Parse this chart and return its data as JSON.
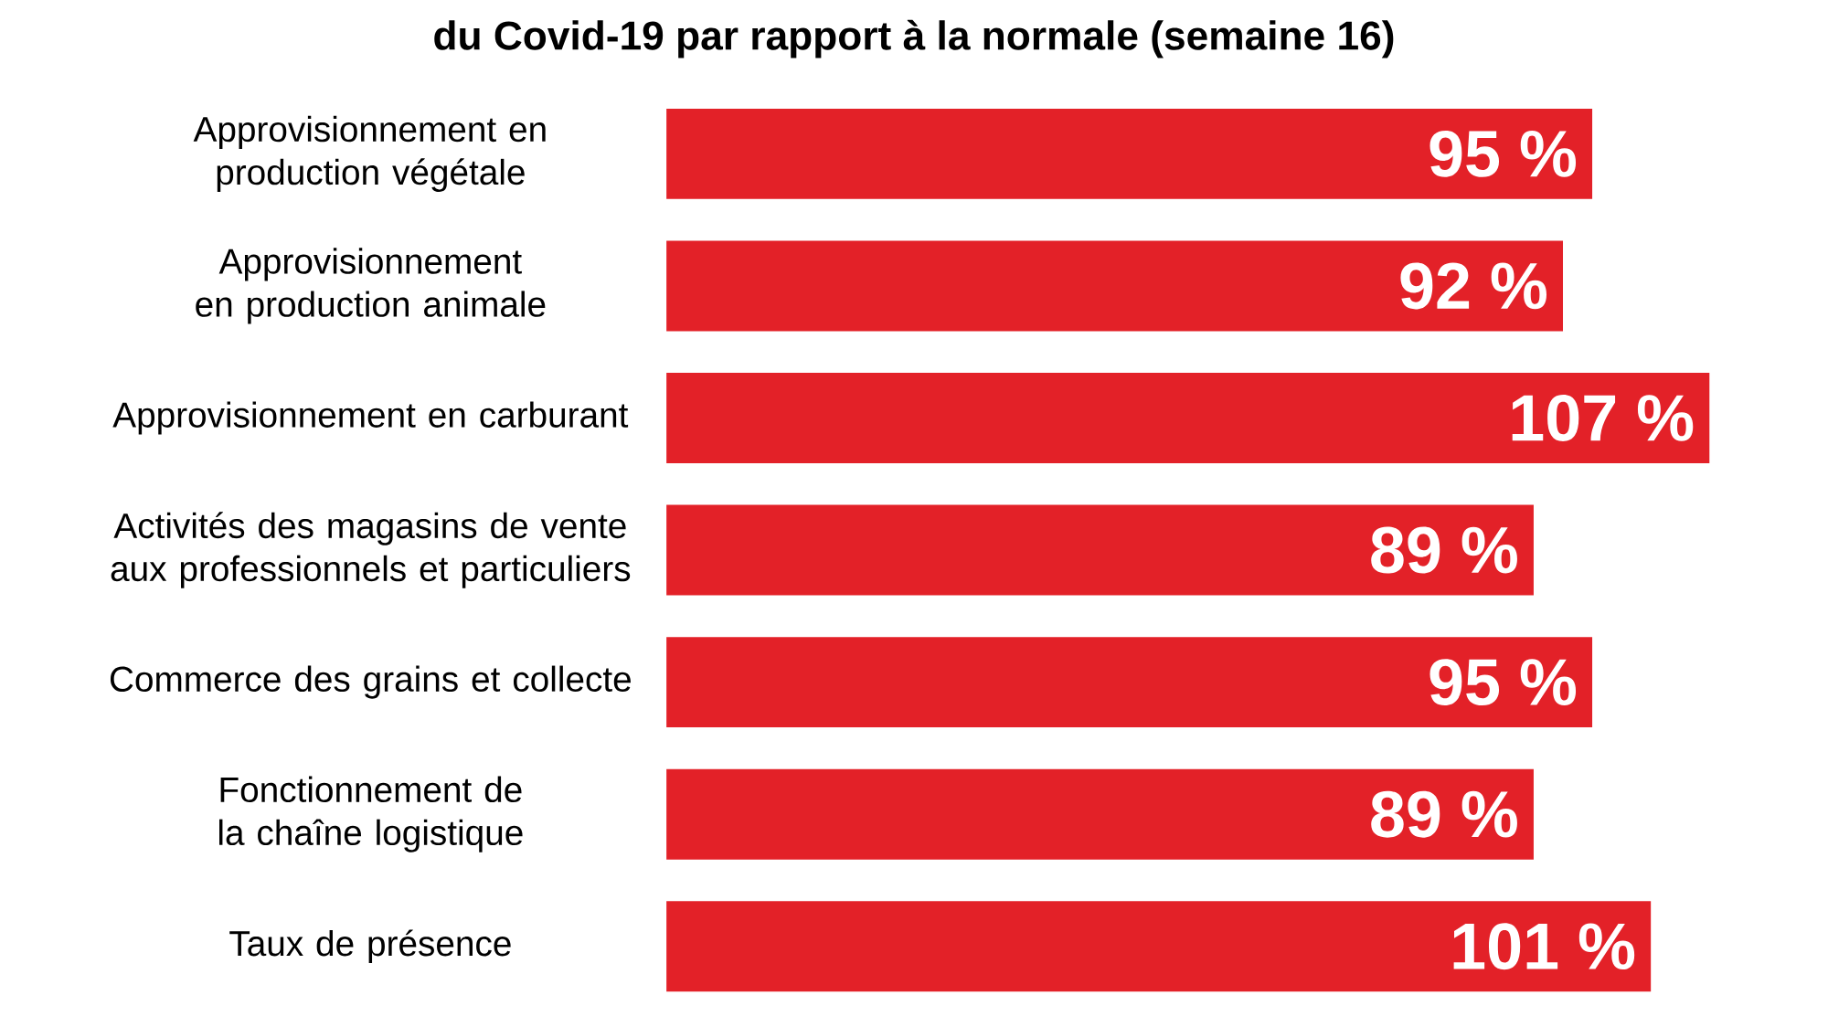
{
  "chart_data": {
    "type": "bar",
    "orientation": "horizontal",
    "title": "du Covid-19 par rapport à la normale (semaine 16)",
    "categories": [
      "Approvisionnement en production végétale",
      "Approvisionnement en production animale",
      "Approvisionnement en carburant",
      "Activités des magasins de vente aux professionnels et particuliers",
      "Commerce des grains et collecte",
      "Fonctionnement de la chaîne logistique",
      "Taux de présence"
    ],
    "values": [
      95,
      92,
      107,
      89,
      95,
      89,
      101
    ],
    "value_labels": [
      "95 %",
      "92 %",
      "107 %",
      "89 %",
      "95 %",
      "89 %",
      "101 %"
    ],
    "color": "#e32128"
  }
}
